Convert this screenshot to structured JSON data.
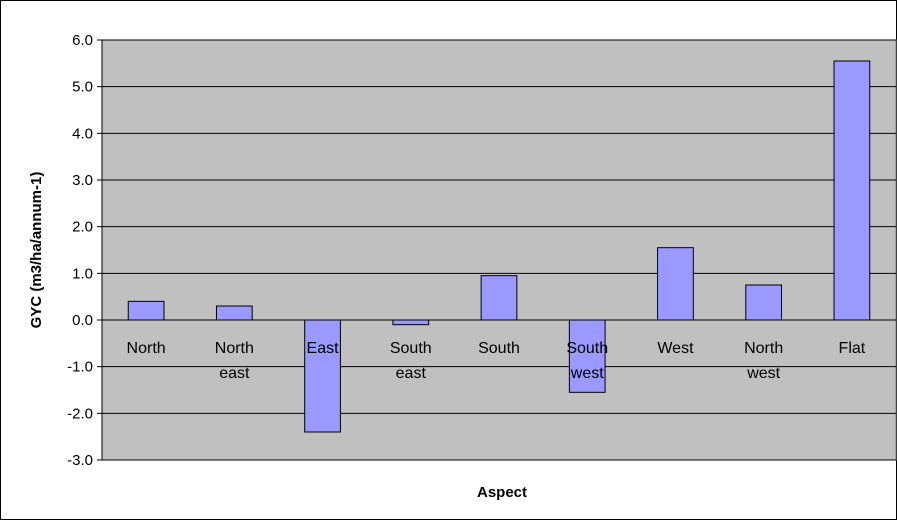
{
  "chart_data": {
    "type": "bar",
    "title": "",
    "xlabel": "Aspect",
    "ylabel": "GYC (m3/ha/annum-1)",
    "categories": [
      [
        "North"
      ],
      [
        "North",
        "east"
      ],
      [
        "East"
      ],
      [
        "South",
        "east"
      ],
      [
        "South"
      ],
      [
        "South",
        "west"
      ],
      [
        "West"
      ],
      [
        "North",
        "west"
      ],
      [
        "Flat"
      ]
    ],
    "values": [
      0.4,
      0.3,
      -2.4,
      -0.1,
      0.95,
      -1.55,
      1.55,
      0.75,
      5.55
    ],
    "ylim": [
      -3.0,
      6.0
    ],
    "yticks": [
      "-3.0",
      "-2.0",
      "-1.0",
      "0.0",
      "1.0",
      "2.0",
      "3.0",
      "4.0",
      "5.0",
      "6.0"
    ],
    "grid": true,
    "legend": "none",
    "colors": {
      "bar_fill": "#9999ff",
      "bar_stroke": "#000000",
      "plot_background": "#c0c0c0",
      "gridline": "#000000"
    }
  }
}
